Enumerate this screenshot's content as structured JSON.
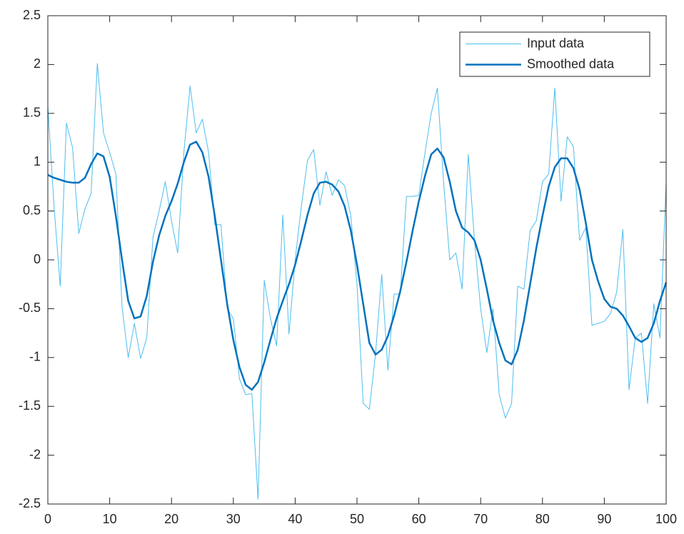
{
  "chart_data": {
    "type": "line",
    "x": [
      0,
      1,
      2,
      3,
      4,
      5,
      6,
      7,
      8,
      9,
      10,
      11,
      12,
      13,
      14,
      15,
      16,
      17,
      18,
      19,
      20,
      21,
      22,
      23,
      24,
      25,
      26,
      27,
      28,
      29,
      30,
      31,
      32,
      33,
      34,
      35,
      36,
      37,
      38,
      39,
      40,
      41,
      42,
      43,
      44,
      45,
      46,
      47,
      48,
      49,
      50,
      51,
      52,
      53,
      54,
      55,
      56,
      57,
      58,
      59,
      60,
      61,
      62,
      63,
      64,
      65,
      66,
      67,
      68,
      69,
      70,
      71,
      72,
      73,
      74,
      75,
      76,
      77,
      78,
      79,
      80,
      81,
      82,
      83,
      84,
      85,
      86,
      87,
      88,
      89,
      90,
      91,
      92,
      93,
      94,
      95,
      96,
      97,
      98,
      99,
      100
    ],
    "series": [
      {
        "name": "Input data",
        "color": "#4dbeee",
        "width": 1,
        "values": [
          1.57,
          0.55,
          -0.27,
          1.4,
          1.15,
          0.27,
          0.52,
          0.68,
          2.01,
          1.3,
          1.1,
          0.88,
          -0.48,
          -1.0,
          -0.65,
          -1.01,
          -0.8,
          0.23,
          0.5,
          0.8,
          0.4,
          0.07,
          1.1,
          1.78,
          1.3,
          1.44,
          1.1,
          0.36,
          0.36,
          -0.5,
          -0.6,
          -1.22,
          -1.38,
          -1.37,
          -2.45,
          -0.21,
          -0.6,
          -0.88,
          0.46,
          -0.76,
          0.0,
          0.55,
          1.02,
          1.13,
          0.56,
          0.9,
          0.66,
          0.82,
          0.76,
          0.45,
          -0.25,
          -1.47,
          -1.53,
          -0.96,
          -0.15,
          -1.13,
          -0.35,
          -0.35,
          0.65,
          0.65,
          0.66,
          1.1,
          1.5,
          1.76,
          0.8,
          0.0,
          0.07,
          -0.3,
          1.08,
          0.2,
          -0.5,
          -0.95,
          -0.5,
          -1.38,
          -1.62,
          -1.47,
          -0.27,
          -0.3,
          0.3,
          0.4,
          0.8,
          0.88,
          1.76,
          0.6,
          1.26,
          1.16,
          0.2,
          0.33,
          -0.67,
          -0.65,
          -0.63,
          -0.55,
          -0.33,
          0.31,
          -1.33,
          -0.8,
          -0.75,
          -1.47,
          -0.45,
          -0.8,
          0.8
        ]
      },
      {
        "name": "Smoothed data",
        "color": "#0072bd",
        "width": 2.5,
        "values": [
          0.87,
          0.84,
          0.82,
          0.8,
          0.79,
          0.79,
          0.84,
          0.98,
          1.09,
          1.06,
          0.85,
          0.45,
          0.0,
          -0.42,
          -0.6,
          -0.58,
          -0.37,
          -0.02,
          0.25,
          0.45,
          0.6,
          0.78,
          1.0,
          1.18,
          1.21,
          1.1,
          0.85,
          0.45,
          0.0,
          -0.45,
          -0.82,
          -1.1,
          -1.28,
          -1.33,
          -1.25,
          -1.05,
          -0.82,
          -0.6,
          -0.42,
          -0.25,
          -0.05,
          0.2,
          0.46,
          0.68,
          0.79,
          0.8,
          0.77,
          0.7,
          0.55,
          0.3,
          -0.05,
          -0.45,
          -0.85,
          -0.97,
          -0.92,
          -0.78,
          -0.57,
          -0.32,
          -0.02,
          0.3,
          0.6,
          0.86,
          1.08,
          1.14,
          1.05,
          0.8,
          0.5,
          0.33,
          0.28,
          0.2,
          0.0,
          -0.3,
          -0.62,
          -0.85,
          -1.03,
          -1.07,
          -0.92,
          -0.62,
          -0.25,
          0.12,
          0.45,
          0.75,
          0.95,
          1.04,
          1.04,
          0.94,
          0.72,
          0.38,
          0.0,
          -0.22,
          -0.4,
          -0.48,
          -0.5,
          -0.57,
          -0.68,
          -0.8,
          -0.84,
          -0.8,
          -0.65,
          -0.42,
          -0.23
        ]
      }
    ],
    "xlim": [
      0,
      100
    ],
    "xticks": [
      0,
      10,
      20,
      30,
      40,
      50,
      60,
      70,
      80,
      90,
      100
    ],
    "ylim": [
      -2.5,
      2.5
    ],
    "yticks": [
      -2.5,
      -2,
      -1.5,
      -1,
      -0.5,
      0,
      0.5,
      1,
      1.5,
      2,
      2.5
    ],
    "grid": false,
    "legend": "northeast"
  }
}
